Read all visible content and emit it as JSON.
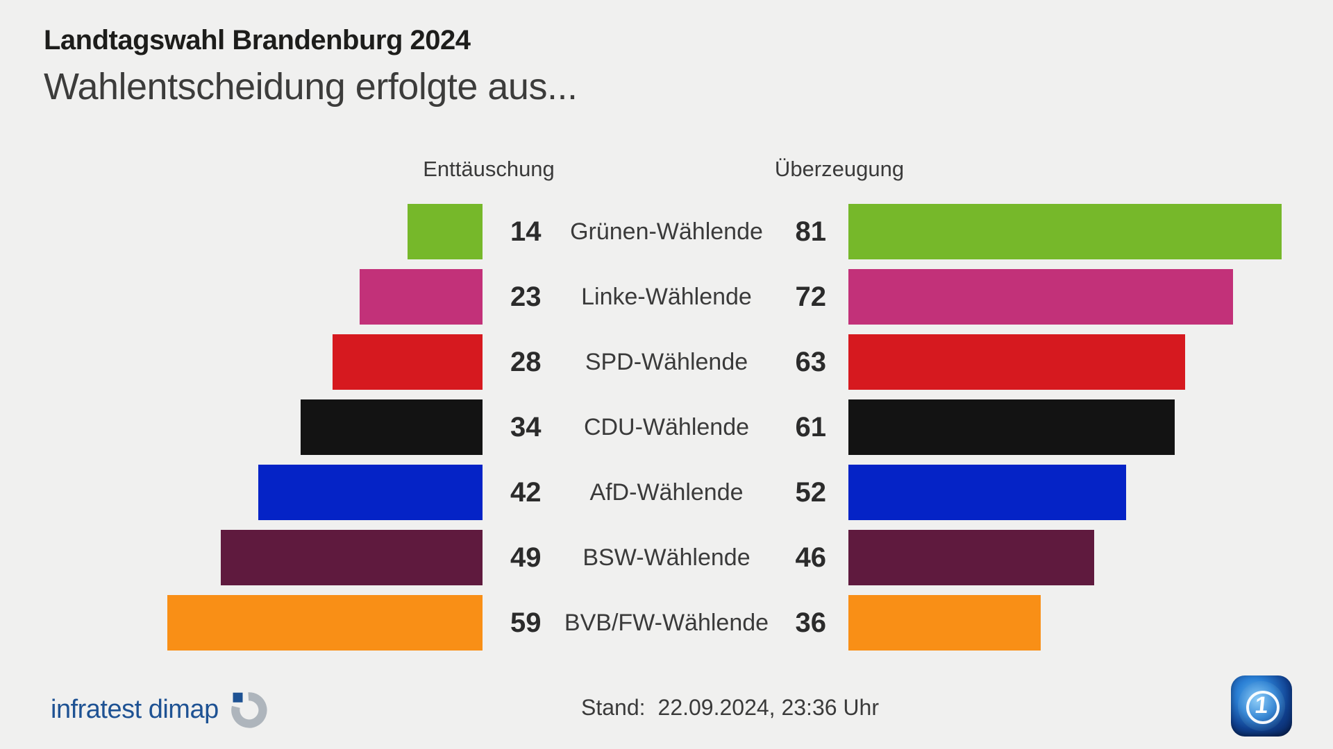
{
  "title": "Landtagswahl Brandenburg 2024",
  "subtitle": "Wahlentscheidung erfolgte aus...",
  "columns": {
    "left": "Enttäuschung",
    "right": "Überzeugung"
  },
  "chart_data": {
    "type": "bar",
    "orientation": "diverging-horizontal",
    "title": "Wahlentscheidung erfolgte aus...",
    "categories": [
      "Grünen-Wählende",
      "Linke-Wählende",
      "SPD-Wählende",
      "CDU-Wählende",
      "AfD-Wählende",
      "BSW-Wählende",
      "BVB/FW-Wählende"
    ],
    "series": [
      {
        "name": "Enttäuschung",
        "side": "left",
        "values": [
          14,
          23,
          28,
          34,
          42,
          49,
          59
        ]
      },
      {
        "name": "Überzeugung",
        "side": "right",
        "values": [
          81,
          72,
          63,
          61,
          52,
          46,
          36
        ]
      }
    ],
    "bar_colors": [
      "#76B82A",
      "#C23179",
      "#D6191F",
      "#131313",
      "#0523C6",
      "#5F1A3E",
      "#F98F16"
    ],
    "value_range": [
      0,
      81
    ],
    "grid": false,
    "legend_position": "top"
  },
  "footer": {
    "source_logo_text": "infratest dimap",
    "stand_label": "Stand:",
    "stand_value": "22.09.2024, 23:36 Uhr",
    "broadcaster_logo": "ARD tagesschau",
    "ard_one_glyph": "1"
  },
  "colors": {
    "background": "#F0F0EF",
    "title_text": "#1D1D1B",
    "subtitle_text": "#3C3C3B",
    "label_text": "#3A3A3A",
    "value_text": "#2B2B2B",
    "source_blue": "#1E5293",
    "source_gray": "#AEB5BC"
  }
}
